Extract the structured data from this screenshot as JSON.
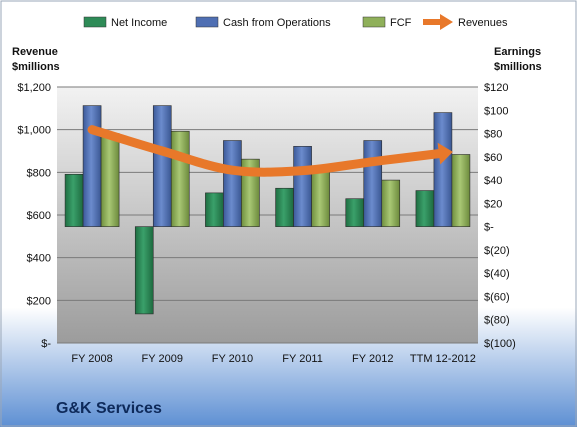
{
  "company_name": "G&K Services",
  "chart_data": {
    "type": "bar",
    "categories": [
      "FY 2008",
      "FY 2009",
      "FY 2010",
      "FY 2011",
      "FY 2012",
      "TTM 12-2012"
    ],
    "series": [
      {
        "name": "Net Income",
        "axis": "right",
        "values": [
          45,
          -75,
          29,
          33,
          24,
          31
        ]
      },
      {
        "name": "Cash from Operations",
        "axis": "right",
        "values": [
          104,
          104,
          74,
          69,
          74,
          98
        ]
      },
      {
        "name": "FCF",
        "axis": "right",
        "values": [
          80,
          82,
          58,
          47,
          40,
          62
        ]
      },
      {
        "name": "Revenues",
        "type": "line",
        "axis": "left",
        "values": [
          1000,
          900,
          810,
          808,
          850,
          890
        ]
      }
    ],
    "left_axis": {
      "title_line1": "Revenue",
      "title_line2": "$millions",
      "ylim": [
        0,
        1200
      ],
      "ticks": [
        {
          "value": 0,
          "label": "$-"
        },
        {
          "value": 200,
          "label": "$200"
        },
        {
          "value": 400,
          "label": "$400"
        },
        {
          "value": 600,
          "label": "$600"
        },
        {
          "value": 800,
          "label": "$800"
        },
        {
          "value": 1000,
          "label": "$1,000"
        },
        {
          "value": 1200,
          "label": "$1,200"
        }
      ]
    },
    "right_axis": {
      "title_line1": "Earnings",
      "title_line2": "$millions",
      "ylim": [
        -100,
        120
      ],
      "ticks": [
        {
          "value": 120,
          "label": "$120"
        },
        {
          "value": 100,
          "label": "$100"
        },
        {
          "value": 80,
          "label": "$80"
        },
        {
          "value": 60,
          "label": "$60"
        },
        {
          "value": 40,
          "label": "$40"
        },
        {
          "value": 20,
          "label": "$20"
        },
        {
          "value": 0,
          "label": "$-"
        },
        {
          "value": -20,
          "label": "$(20)"
        },
        {
          "value": -40,
          "label": "$(40)"
        },
        {
          "value": -60,
          "label": "$(60)"
        },
        {
          "value": -80,
          "label": "$(80)"
        },
        {
          "value": -100,
          "label": "$(100)"
        }
      ]
    },
    "legend": [
      "Net Income",
      "Cash from Operations",
      "FCF",
      "Revenues"
    ],
    "legend_position": "top",
    "grid": true,
    "colors": {
      "Net Income": "#2e8b57",
      "Cash from Operations": "#4f6fb3",
      "FCF": "#8fb05a",
      "Revenues": "#e8782a"
    }
  }
}
